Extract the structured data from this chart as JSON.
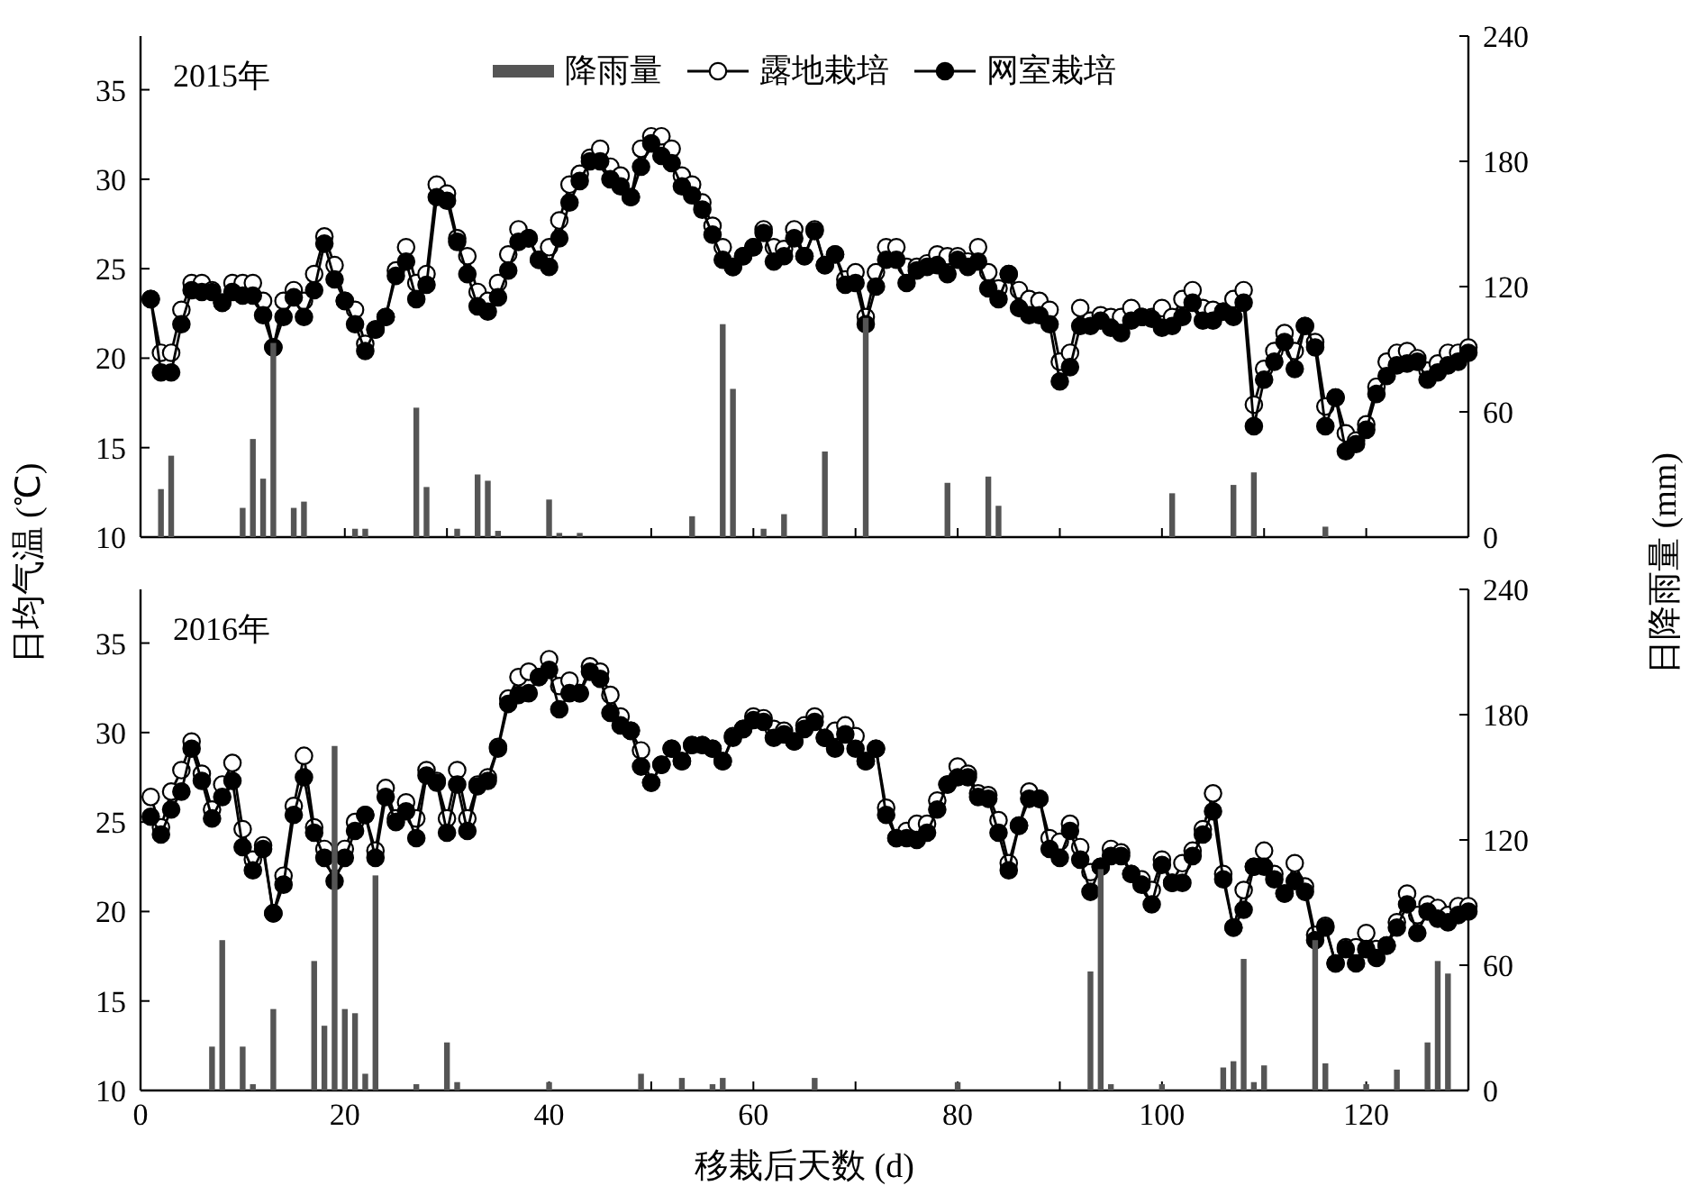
{
  "chart_data": [
    {
      "type": "line",
      "annotations": [
        "2015年"
      ],
      "ylabel": "日均气温 (℃)",
      "y2label": "日降雨量 (mm)",
      "legend": "top",
      "marker": "circle",
      "grid": false,
      "tick_labels": "y",
      "xlim": [
        0,
        130
      ],
      "xticks": [
        0,
        {
          "value": 10,
          "label": null
        },
        20,
        {
          "value": 30,
          "label": null
        },
        40,
        {
          "value": 50,
          "label": null
        },
        60,
        {
          "value": 70,
          "label": null
        },
        80,
        {
          "value": 90,
          "label": null
        },
        100,
        {
          "value": 110,
          "label": null
        },
        120,
        {
          "value": 130,
          "label": null
        }
      ],
      "ylim": [
        10,
        38
      ],
      "yticks": [
        10,
        15,
        20,
        25,
        30,
        35
      ],
      "y2lim": [
        0,
        240
      ],
      "y2ticks": [
        0,
        60,
        120,
        180,
        240
      ],
      "x": [
        1,
        2,
        3,
        4,
        5,
        6,
        7,
        8,
        9,
        10,
        11,
        12,
        13,
        14,
        15,
        16,
        17,
        18,
        19,
        20,
        21,
        22,
        23,
        24,
        25,
        26,
        27,
        28,
        29,
        30,
        31,
        32,
        33,
        34,
        35,
        36,
        37,
        38,
        39,
        40,
        41,
        42,
        43,
        44,
        45,
        46,
        47,
        48,
        49,
        50,
        51,
        52,
        53,
        54,
        55,
        56,
        57,
        58,
        59,
        60,
        61,
        62,
        63,
        64,
        65,
        66,
        67,
        68,
        69,
        70,
        71,
        72,
        73,
        74,
        75,
        76,
        77,
        78,
        79,
        80,
        81,
        82,
        83,
        84,
        85,
        86,
        87,
        88,
        89,
        90,
        91,
        92,
        93,
        94,
        95,
        96,
        97,
        98,
        99,
        100,
        101,
        102,
        103,
        104,
        105,
        106,
        107,
        108,
        109,
        110,
        111,
        112,
        113,
        114,
        115,
        116,
        117,
        118,
        119,
        120,
        121,
        122,
        123,
        124,
        125,
        126,
        127,
        128,
        129,
        130
      ],
      "series": [
        {
          "name": "降雨量",
          "type": "bar",
          "axis": "y2",
          "color": "#555555",
          "x": [
            2,
            3,
            10,
            11,
            12,
            13,
            15,
            16,
            21,
            22,
            27,
            28,
            31,
            33,
            34,
            35,
            40,
            41,
            43,
            54,
            57,
            58,
            61,
            63,
            67,
            71,
            79,
            83,
            84,
            101,
            107,
            109,
            116
          ],
          "values": [
            23,
            39,
            14,
            47,
            28,
            93,
            14,
            17,
            4,
            4,
            62,
            24,
            4,
            30,
            27,
            3,
            18,
            2,
            2,
            10,
            102,
            71,
            4,
            11,
            41,
            105,
            26,
            29,
            15,
            21,
            25,
            31,
            5
          ]
        },
        {
          "name": "露地栽培",
          "color": "#ffffff",
          "values": [
            23.3,
            20.3,
            20.3,
            22.7,
            24.2,
            24.2,
            23.8,
            23.1,
            24.2,
            24.2,
            24.2,
            23.2,
            20.6,
            23.2,
            23.8,
            23.2,
            24.7,
            26.8,
            25.2,
            23.2,
            22.7,
            20.8,
            21.6,
            22.3,
            24.9,
            26.2,
            24.2,
            24.7,
            29.7,
            29.2,
            26.7,
            25.7,
            23.7,
            23.2,
            24.2,
            25.8,
            27.2,
            26.7,
            25.5,
            26.2,
            27.7,
            29.7,
            30.3,
            31.2,
            31.7,
            30.7,
            30.2,
            29.0,
            31.7,
            32.4,
            32.4,
            31.7,
            30.2,
            29.7,
            28.7,
            27.4,
            26.2,
            25.1,
            25.7,
            26.2,
            27.2,
            26.2,
            26.1,
            27.2,
            25.7,
            27.2,
            25.2,
            25.8,
            24.4,
            24.8,
            22.3,
            24.8,
            26.2,
            26.2,
            25.1,
            25.1,
            25.3,
            25.8,
            25.7,
            25.7,
            25.4,
            26.2,
            24.8,
            23.9,
            24.7,
            23.8,
            23.3,
            23.2,
            22.7,
            19.8,
            20.3,
            22.8,
            22.1,
            22.4,
            22.3,
            22.3,
            22.8,
            22.3,
            22.3,
            22.8,
            22.3,
            23.3,
            23.8,
            22.8,
            22.7,
            22.6,
            23.3,
            23.8,
            17.4,
            19.4,
            20.4,
            21.4,
            20.4,
            21.8,
            20.9,
            17.3,
            17.8,
            15.8,
            15.4,
            16.3,
            18.4,
            19.8,
            20.3,
            20.4,
            20.0,
            19.3,
            19.7,
            20.3,
            20.3,
            20.6
          ]
        },
        {
          "name": "网室栽培",
          "color": "#000000",
          "values": [
            23.3,
            19.2,
            19.2,
            21.9,
            23.8,
            23.7,
            23.7,
            23.1,
            23.7,
            23.5,
            23.5,
            22.4,
            20.6,
            22.3,
            23.4,
            22.3,
            23.8,
            26.4,
            24.4,
            23.2,
            21.9,
            20.4,
            21.6,
            22.3,
            24.6,
            25.4,
            23.3,
            24.1,
            29.0,
            28.8,
            26.5,
            24.7,
            22.9,
            22.6,
            23.4,
            24.9,
            26.5,
            26.7,
            25.5,
            25.1,
            26.7,
            28.7,
            29.9,
            31.0,
            31.0,
            30.0,
            29.6,
            29.0,
            30.7,
            32.0,
            31.3,
            30.9,
            29.6,
            29.1,
            28.3,
            26.9,
            25.5,
            25.1,
            25.7,
            26.2,
            27.0,
            25.4,
            25.7,
            26.7,
            25.7,
            27.1,
            25.2,
            25.8,
            24.1,
            24.2,
            21.9,
            24.0,
            25.5,
            25.5,
            24.2,
            24.9,
            25.1,
            25.2,
            24.7,
            25.5,
            25.1,
            25.4,
            23.9,
            23.3,
            24.7,
            22.8,
            22.4,
            22.4,
            21.9,
            18.7,
            19.5,
            21.8,
            21.8,
            22.1,
            21.7,
            21.4,
            22.1,
            22.3,
            22.2,
            21.7,
            21.8,
            22.3,
            23.1,
            22.1,
            22.1,
            22.6,
            22.3,
            23.1,
            16.2,
            18.8,
            19.8,
            20.9,
            19.4,
            21.8,
            20.6,
            16.2,
            17.8,
            14.8,
            15.2,
            16.0,
            18.0,
            19.0,
            19.6,
            19.7,
            19.8,
            18.8,
            19.2,
            19.6,
            19.8,
            20.3
          ]
        }
      ]
    },
    {
      "type": "line",
      "annotations": [
        "2016年"
      ],
      "xlabel": "移栽后天数 (d)",
      "marker": "circle",
      "grid": false,
      "xlim": [
        0,
        130
      ],
      "xticks": [
        0,
        {
          "value": 10,
          "label": null
        },
        20,
        {
          "value": 30,
          "label": null
        },
        40,
        {
          "value": 50,
          "label": null
        },
        60,
        {
          "value": 70,
          "label": null
        },
        80,
        {
          "value": 90,
          "label": null
        },
        100,
        {
          "value": 110,
          "label": null
        },
        120,
        {
          "value": 130,
          "label": null
        }
      ],
      "ylim": [
        10,
        38
      ],
      "yticks": [
        10,
        15,
        20,
        25,
        30,
        35
      ],
      "y2lim": [
        0,
        240
      ],
      "y2ticks": [
        0,
        60,
        120,
        180,
        240
      ],
      "x": [
        1,
        2,
        3,
        4,
        5,
        6,
        7,
        8,
        9,
        10,
        11,
        12,
        13,
        14,
        15,
        16,
        17,
        18,
        19,
        20,
        21,
        22,
        23,
        24,
        25,
        26,
        27,
        28,
        29,
        30,
        31,
        32,
        33,
        34,
        35,
        36,
        37,
        38,
        39,
        40,
        41,
        42,
        43,
        44,
        45,
        46,
        47,
        48,
        49,
        50,
        51,
        52,
        53,
        54,
        55,
        56,
        57,
        58,
        59,
        60,
        61,
        62,
        63,
        64,
        65,
        66,
        67,
        68,
        69,
        70,
        71,
        72,
        73,
        74,
        75,
        76,
        77,
        78,
        79,
        80,
        81,
        82,
        83,
        84,
        85,
        86,
        87,
        88,
        89,
        90,
        91,
        92,
        93,
        94,
        95,
        96,
        97,
        98,
        99,
        100,
        101,
        102,
        103,
        104,
        105,
        106,
        107,
        108,
        109,
        110,
        111,
        112,
        113,
        114,
        115,
        116,
        117,
        118,
        119,
        120,
        121,
        122,
        123,
        124,
        125,
        126,
        127,
        128,
        129,
        130
      ],
      "series": [
        {
          "type": "bar",
          "axis": "y2",
          "color": "#555555",
          "x": [
            7,
            8,
            10,
            11,
            13,
            17,
            18,
            19,
            20,
            21,
            22,
            23,
            27,
            30,
            31,
            40,
            49,
            53,
            56,
            57,
            66,
            80,
            93,
            94,
            95,
            100,
            106,
            107,
            108,
            109,
            110,
            115,
            116,
            120,
            123,
            126,
            127,
            128
          ],
          "values": [
            21,
            72,
            21,
            3,
            39,
            62,
            31,
            165,
            39,
            37,
            8,
            103,
            3,
            23,
            4,
            4,
            8,
            6,
            3,
            6,
            6,
            4,
            57,
            106,
            3,
            3,
            11,
            14,
            63,
            4,
            12,
            72,
            13,
            3,
            10,
            23,
            62,
            56
          ]
        },
        {
          "color": "#ffffff",
          "values": [
            26.4,
            24.7,
            26.7,
            27.9,
            29.5,
            27.7,
            25.7,
            27.1,
            28.3,
            24.6,
            22.9,
            23.7,
            19.9,
            22.0,
            25.9,
            28.7,
            24.7,
            23.5,
            22.7,
            23.5,
            25.0,
            25.4,
            23.4,
            26.9,
            25.2,
            26.1,
            25.2,
            27.9,
            27.3,
            25.2,
            27.9,
            25.2,
            27.1,
            27.5,
            29.2,
            31.9,
            33.1,
            33.4,
            33.1,
            34.1,
            32.6,
            32.9,
            32.2,
            33.7,
            33.4,
            32.1,
            30.9,
            30.1,
            29.0,
            27.2,
            28.2,
            29.1,
            28.4,
            29.3,
            29.3,
            29.1,
            28.4,
            29.8,
            30.2,
            30.9,
            30.8,
            30.2,
            30.1,
            29.5,
            30.4,
            30.9,
            29.7,
            30.1,
            30.4,
            29.8,
            28.4,
            29.1,
            25.8,
            24.1,
            24.5,
            24.9,
            24.9,
            26.2,
            27.1,
            28.1,
            27.7,
            26.6,
            26.5,
            25.1,
            22.7,
            24.8,
            26.7,
            26.3,
            24.1,
            23.9,
            24.9,
            23.6,
            22.2,
            22.5,
            23.5,
            23.3,
            22.1,
            21.8,
            21.2,
            22.9,
            21.6,
            22.7,
            23.4,
            24.6,
            26.6,
            22.1,
            19.1,
            21.2,
            22.5,
            23.4,
            22.1,
            21.0,
            22.7,
            21.4,
            18.7,
            19.2,
            17.1,
            18.0,
            18.0,
            18.8,
            17.9,
            18.1,
            19.4,
            21.0,
            19.8,
            20.4,
            20.2,
            19.8,
            20.3,
            20.3
          ]
        },
        {
          "color": "#000000",
          "values": [
            25.3,
            24.3,
            25.7,
            26.7,
            29.1,
            27.3,
            25.2,
            26.4,
            27.3,
            23.6,
            22.3,
            23.5,
            19.9,
            21.5,
            25.4,
            27.5,
            24.4,
            23.0,
            21.7,
            23.0,
            24.5,
            25.4,
            23.0,
            26.4,
            25.0,
            25.6,
            24.1,
            27.6,
            27.2,
            24.4,
            27.1,
            24.5,
            27.0,
            27.3,
            29.1,
            31.6,
            32.1,
            32.2,
            33.1,
            33.5,
            31.3,
            32.2,
            32.2,
            33.4,
            33.0,
            31.1,
            30.4,
            30.1,
            28.1,
            27.2,
            28.2,
            29.1,
            28.4,
            29.3,
            29.3,
            29.1,
            28.4,
            29.7,
            30.2,
            30.7,
            30.6,
            29.7,
            29.9,
            29.5,
            30.2,
            30.6,
            29.7,
            29.1,
            29.9,
            29.1,
            28.4,
            29.1,
            25.4,
            24.1,
            24.1,
            24.0,
            24.4,
            25.7,
            27.1,
            27.5,
            27.5,
            26.4,
            26.3,
            24.4,
            22.3,
            24.8,
            26.3,
            26.3,
            23.5,
            23.0,
            24.5,
            22.9,
            21.1,
            22.5,
            23.1,
            23.1,
            22.1,
            21.5,
            20.4,
            22.6,
            21.6,
            21.6,
            23.1,
            24.3,
            25.6,
            21.8,
            19.1,
            20.1,
            22.5,
            22.5,
            21.8,
            21.0,
            21.7,
            21.1,
            18.4,
            19.1,
            17.1,
            17.9,
            17.1,
            17.9,
            17.4,
            18.1,
            19.1,
            20.4,
            18.8,
            20.0,
            19.6,
            19.4,
            19.8,
            20.0
          ]
        }
      ]
    }
  ]
}
